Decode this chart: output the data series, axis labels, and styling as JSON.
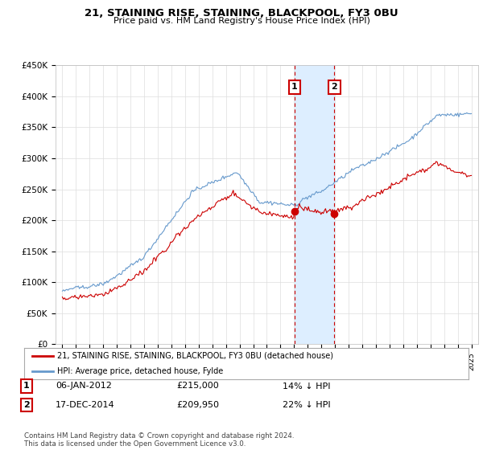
{
  "title": "21, STAINING RISE, STAINING, BLACKPOOL, FY3 0BU",
  "subtitle": "Price paid vs. HM Land Registry's House Price Index (HPI)",
  "ylim": [
    0,
    450000
  ],
  "yticks": [
    0,
    50000,
    100000,
    150000,
    200000,
    250000,
    300000,
    350000,
    400000,
    450000
  ],
  "ytick_labels": [
    "£0",
    "£50K",
    "£100K",
    "£150K",
    "£200K",
    "£250K",
    "£300K",
    "£350K",
    "£400K",
    "£450K"
  ],
  "xlim_start": 1994.5,
  "xlim_end": 2025.5,
  "red_color": "#cc0000",
  "blue_color": "#6699cc",
  "sale1_x": 2012.02,
  "sale1_y": 215000,
  "sale1_label": "1",
  "sale1_date": "06-JAN-2012",
  "sale1_price": "£215,000",
  "sale1_hpi": "14% ↓ HPI",
  "sale2_x": 2014.96,
  "sale2_y": 209950,
  "sale2_label": "2",
  "sale2_date": "17-DEC-2014",
  "sale2_price": "£209,950",
  "sale2_hpi": "22% ↓ HPI",
  "legend_line1": "21, STAINING RISE, STAINING, BLACKPOOL, FY3 0BU (detached house)",
  "legend_line2": "HPI: Average price, detached house, Fylde",
  "footer": "Contains HM Land Registry data © Crown copyright and database right 2024.\nThis data is licensed under the Open Government Licence v3.0.",
  "background_color": "#ffffff",
  "grid_color": "#dddddd",
  "span_color": "#ddeeff"
}
